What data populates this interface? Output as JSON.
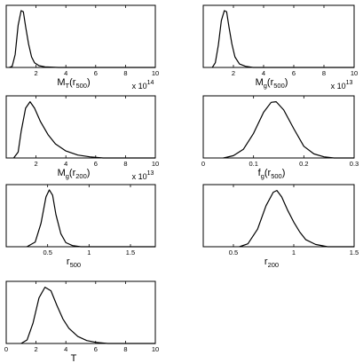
{
  "chart_data": [
    {
      "type": "line",
      "xlabel": "M_T (r_500)",
      "label_main": "M",
      "label_sub": "T",
      "label_tail": "(r",
      "label_tail_sub": "500",
      "label_close": ")",
      "xlim": [
        0,
        10
      ],
      "ticks": [
        {
          "v": 2,
          "t": "2"
        },
        {
          "v": 4,
          "t": "4"
        },
        {
          "v": 6,
          "t": "6"
        },
        {
          "v": 8,
          "t": "8"
        },
        {
          "v": 10,
          "t": "10"
        }
      ],
      "multiplier_base": "x 10",
      "multiplier_exp": "14",
      "curve": [
        [
          0.2,
          0
        ],
        [
          0.4,
          0.02
        ],
        [
          0.6,
          0.22
        ],
        [
          0.8,
          0.72
        ],
        [
          1.0,
          0.97
        ],
        [
          1.15,
          0.95
        ],
        [
          1.3,
          0.7
        ],
        [
          1.5,
          0.4
        ],
        [
          1.7,
          0.18
        ],
        [
          1.9,
          0.08
        ],
        [
          2.2,
          0.03
        ],
        [
          2.6,
          0.01
        ],
        [
          3.5,
          0
        ],
        [
          10,
          0
        ]
      ]
    },
    {
      "type": "line",
      "xlabel": "M_g (r_500)",
      "label_main": "M",
      "label_sub": "g",
      "label_tail": "(r",
      "label_tail_sub": "500",
      "label_close": ")",
      "xlim": [
        0,
        10
      ],
      "ticks": [
        {
          "v": 2,
          "t": "2"
        },
        {
          "v": 4,
          "t": "4"
        },
        {
          "v": 6,
          "t": "6"
        },
        {
          "v": 8,
          "t": "8"
        },
        {
          "v": 10,
          "t": "10"
        }
      ],
      "multiplier_base": "x 10",
      "multiplier_exp": "13",
      "curve": [
        [
          0.6,
          0
        ],
        [
          0.8,
          0.08
        ],
        [
          1.0,
          0.38
        ],
        [
          1.2,
          0.8
        ],
        [
          1.4,
          0.97
        ],
        [
          1.55,
          0.95
        ],
        [
          1.7,
          0.7
        ],
        [
          1.9,
          0.4
        ],
        [
          2.1,
          0.18
        ],
        [
          2.4,
          0.06
        ],
        [
          2.8,
          0.02
        ],
        [
          3.3,
          0
        ],
        [
          10,
          0
        ]
      ]
    },
    {
      "type": "line",
      "xlabel": "M_g (r_200)",
      "label_main": "M",
      "label_sub": "g",
      "label_tail": "(r",
      "label_tail_sub": "200",
      "label_close": ")",
      "xlim": [
        0,
        10
      ],
      "ticks": [
        {
          "v": 2,
          "t": "2"
        },
        {
          "v": 4,
          "t": "4"
        },
        {
          "v": 6,
          "t": "6"
        },
        {
          "v": 8,
          "t": "8"
        },
        {
          "v": 10,
          "t": "10"
        }
      ],
      "multiplier_base": "x 10",
      "multiplier_exp": "13",
      "curve": [
        [
          0.5,
          0
        ],
        [
          0.8,
          0.1
        ],
        [
          1.0,
          0.45
        ],
        [
          1.3,
          0.85
        ],
        [
          1.6,
          0.96
        ],
        [
          1.9,
          0.85
        ],
        [
          2.3,
          0.62
        ],
        [
          2.8,
          0.4
        ],
        [
          3.3,
          0.24
        ],
        [
          4.0,
          0.12
        ],
        [
          4.8,
          0.05
        ],
        [
          5.6,
          0.02
        ],
        [
          6.5,
          0
        ],
        [
          10,
          0
        ]
      ]
    },
    {
      "type": "line",
      "xlabel": "f_g (r_500)",
      "label_main": "f",
      "label_sub": "g",
      "label_tail": "(r",
      "label_tail_sub": "500",
      "label_close": ")",
      "xlim": [
        0,
        0.3
      ],
      "ticks": [
        {
          "v": 0,
          "t": "0"
        },
        {
          "v": 0.1,
          "t": "0.1"
        },
        {
          "v": 0.2,
          "t": "0.2"
        },
        {
          "v": 0.3,
          "t": "0.3"
        }
      ],
      "multiplier_base": "",
      "multiplier_exp": "",
      "curve": [
        [
          0.04,
          0
        ],
        [
          0.06,
          0.04
        ],
        [
          0.08,
          0.15
        ],
        [
          0.1,
          0.42
        ],
        [
          0.12,
          0.78
        ],
        [
          0.135,
          0.95
        ],
        [
          0.145,
          0.96
        ],
        [
          0.16,
          0.82
        ],
        [
          0.18,
          0.5
        ],
        [
          0.2,
          0.2
        ],
        [
          0.22,
          0.07
        ],
        [
          0.24,
          0.02
        ],
        [
          0.26,
          0
        ],
        [
          0.3,
          0
        ]
      ]
    },
    {
      "type": "line",
      "xlabel": "r_500",
      "label_main": "r",
      "label_sub": "500",
      "label_tail": "",
      "label_tail_sub": "",
      "label_close": "",
      "xlim": [
        0,
        1.8
      ],
      "ticks": [
        {
          "v": 0.5,
          "t": "0.5"
        },
        {
          "v": 1,
          "t": "1"
        },
        {
          "v": 1.5,
          "t": "1.5"
        }
      ],
      "multiplier_base": "",
      "multiplier_exp": "",
      "curve": [
        [
          0.25,
          0
        ],
        [
          0.35,
          0.08
        ],
        [
          0.42,
          0.4
        ],
        [
          0.48,
          0.85
        ],
        [
          0.52,
          0.97
        ],
        [
          0.56,
          0.88
        ],
        [
          0.6,
          0.55
        ],
        [
          0.66,
          0.22
        ],
        [
          0.72,
          0.07
        ],
        [
          0.8,
          0.02
        ],
        [
          0.9,
          0
        ],
        [
          1.8,
          0
        ]
      ]
    },
    {
      "type": "line",
      "xlabel": "r_200",
      "label_main": "r",
      "label_sub": "200",
      "label_tail": "",
      "label_tail_sub": "",
      "label_close": "",
      "xlim": [
        0.25,
        1.5
      ],
      "ticks": [
        {
          "v": 0.5,
          "t": "0.5"
        },
        {
          "v": 1,
          "t": "1"
        },
        {
          "v": 1.5,
          "t": "1.5"
        }
      ],
      "multiplier_base": "",
      "multiplier_exp": "",
      "curve": [
        [
          0.55,
          0
        ],
        [
          0.62,
          0.05
        ],
        [
          0.7,
          0.3
        ],
        [
          0.77,
          0.7
        ],
        [
          0.83,
          0.93
        ],
        [
          0.86,
          0.96
        ],
        [
          0.9,
          0.85
        ],
        [
          0.95,
          0.62
        ],
        [
          1.0,
          0.42
        ],
        [
          1.05,
          0.25
        ],
        [
          1.1,
          0.12
        ],
        [
          1.18,
          0.04
        ],
        [
          1.28,
          0
        ],
        [
          1.5,
          0
        ]
      ]
    },
    {
      "type": "line",
      "xlabel": "T",
      "label_main": "T",
      "label_sub": "",
      "label_tail": "",
      "label_tail_sub": "",
      "label_close": "",
      "xlim": [
        0,
        10
      ],
      "ticks": [
        {
          "v": 0,
          "t": "0"
        },
        {
          "v": 2,
          "t": "2"
        },
        {
          "v": 4,
          "t": "4"
        },
        {
          "v": 6,
          "t": "6"
        },
        {
          "v": 8,
          "t": "8"
        },
        {
          "v": 10,
          "t": "10"
        }
      ],
      "multiplier_base": "",
      "multiplier_exp": "",
      "curve": [
        [
          1.0,
          0
        ],
        [
          1.4,
          0.06
        ],
        [
          1.8,
          0.35
        ],
        [
          2.2,
          0.78
        ],
        [
          2.6,
          0.96
        ],
        [
          3.0,
          0.9
        ],
        [
          3.4,
          0.65
        ],
        [
          3.8,
          0.42
        ],
        [
          4.2,
          0.26
        ],
        [
          4.8,
          0.12
        ],
        [
          5.4,
          0.05
        ],
        [
          6.0,
          0.02
        ],
        [
          6.8,
          0
        ],
        [
          10,
          0
        ]
      ]
    }
  ]
}
